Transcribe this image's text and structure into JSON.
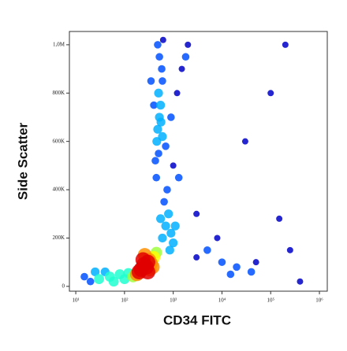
{
  "chart_data": {
    "type": "scatter",
    "x_label": "CD34 FITC",
    "y_label": "Side Scatter",
    "xscale": "log",
    "xlim": [
      7.4,
      1450000
    ],
    "xticks": [
      {
        "value": 10,
        "label": "10¹"
      },
      {
        "value": 100,
        "label": "10²"
      },
      {
        "value": 1000,
        "label": "10³"
      },
      {
        "value": 10000,
        "label": "10⁴"
      },
      {
        "value": 100000,
        "label": "10⁵"
      },
      {
        "value": 1000000,
        "label": "10⁶"
      }
    ],
    "ylim": [
      -20000,
      1055000
    ],
    "yticks": [
      {
        "value": 0,
        "label": "0"
      },
      {
        "value": 200000,
        "label": "200K"
      },
      {
        "value": 400000,
        "label": "400K"
      },
      {
        "value": 600000,
        "label": "600K"
      },
      {
        "value": 800000,
        "label": "800K"
      },
      {
        "value": 1000000,
        "label": "1,0M"
      }
    ],
    "colormap": [
      "#0000c8",
      "#0050ff",
      "#00b0ff",
      "#20ffd0",
      "#a0ff40",
      "#ffff00",
      "#ff9000",
      "#e00000"
    ],
    "x": [
      250,
      300,
      280,
      320,
      350,
      220,
      400,
      200,
      260,
      380,
      300,
      450,
      180,
      330,
      240,
      30,
      50,
      80,
      120,
      20,
      15,
      40,
      100,
      150,
      60,
      25,
      600,
      700,
      800,
      650,
      900,
      1000,
      750,
      550,
      850,
      1100,
      450,
      500,
      480,
      520,
      550,
      500,
      460,
      600,
      580,
      520,
      480,
      620,
      430,
      560,
      600,
      700,
      900,
      1200,
      1500,
      400,
      350,
      2000,
      1800,
      1000,
      1300,
      5000,
      10000,
      20000,
      3000,
      8000,
      15000,
      40000,
      200000,
      100000,
      150000,
      250000,
      50000,
      3000,
      30000,
      400000
    ],
    "y": [
      90000,
      100000,
      80000,
      110000,
      95000,
      70000,
      120000,
      60000,
      130000,
      80000,
      60000,
      140000,
      50000,
      70000,
      110000,
      30000,
      40000,
      50000,
      55000,
      20000,
      40000,
      60000,
      30000,
      40000,
      20000,
      60000,
      200000,
      250000,
      300000,
      350000,
      220000,
      180000,
      400000,
      280000,
      150000,
      250000,
      450000,
      550000,
      650000,
      700000,
      750000,
      800000,
      600000,
      850000,
      900000,
      950000,
      1000000,
      1020000,
      520000,
      680000,
      620000,
      580000,
      700000,
      800000,
      900000,
      750000,
      850000,
      1000000,
      950000,
      500000,
      450000,
      150000,
      100000,
      80000,
      120000,
      200000,
      50000,
      60000,
      1000000,
      800000,
      280000,
      150000,
      100000,
      300000,
      600000,
      20000
    ]
  }
}
